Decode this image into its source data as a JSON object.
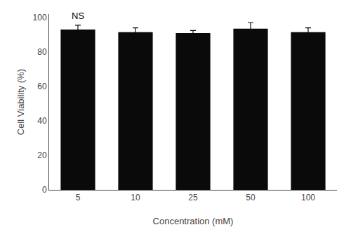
{
  "chart_data": {
    "type": "bar",
    "categories": [
      "5",
      "10",
      "25",
      "50",
      "100"
    ],
    "values": [
      93.0,
      91.5,
      91.0,
      93.5,
      91.5
    ],
    "errors": [
      2.5,
      2.5,
      1.5,
      3.5,
      2.5
    ],
    "color": "#0a0a0a",
    "ylabel": "Cell Viability (%)",
    "xlabel": "Concentration (mM)",
    "ylim": [
      0,
      102
    ],
    "yticks": [
      0,
      20,
      40,
      60,
      80,
      100
    ],
    "annotation": {
      "text": "NS",
      "category": "5"
    },
    "grid": false
  }
}
